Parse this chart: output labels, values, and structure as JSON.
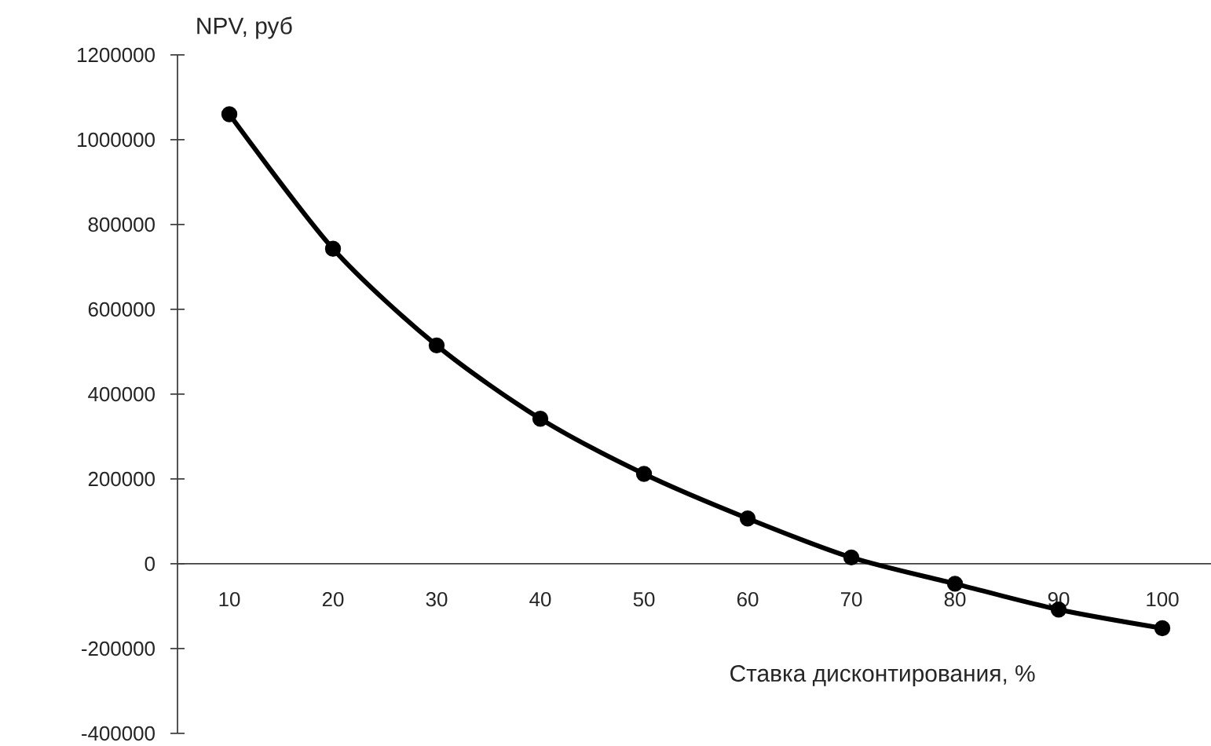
{
  "chart_data": {
    "type": "line",
    "xlabel": "Ставка дисконтирования, %",
    "ylabel": "NPV, руб",
    "categories": [
      "10",
      "20",
      "30",
      "40",
      "50",
      "60",
      "70",
      "80",
      "90",
      "100"
    ],
    "values": [
      1060000,
      743000,
      515000,
      342000,
      212000,
      107000,
      15000,
      -47000,
      -108000,
      -152000
    ],
    "color": "#000000",
    "marker": "circle",
    "line_style": "solid",
    "ylim": [
      -400000,
      1200000
    ],
    "yticks": [
      -400000,
      -200000,
      0,
      200000,
      400000,
      600000,
      800000,
      1000000,
      1200000
    ]
  }
}
